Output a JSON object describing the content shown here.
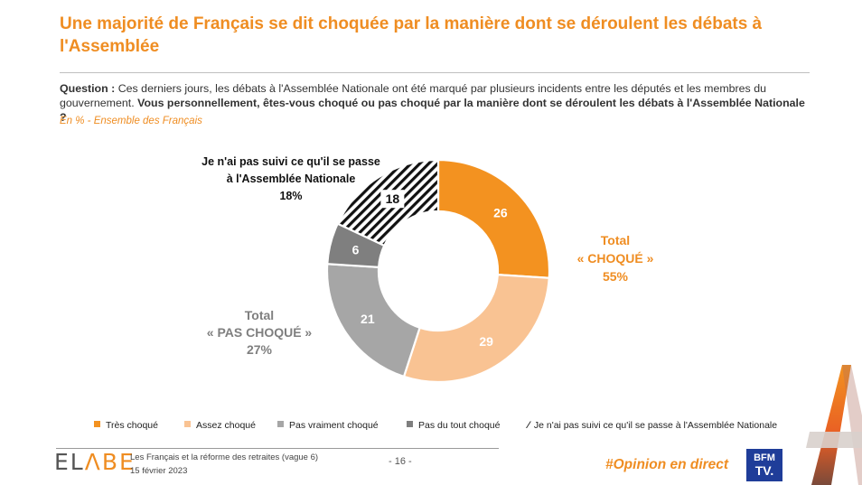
{
  "header": {
    "title": "Une majorité de Français se dit choquée par la manière dont se déroulent les débats à l'Assemblée",
    "question_prefix": "Question :",
    "question_text": " Ces derniers jours, les débats à l'Assemblée Nationale ont été marqué par plusieurs incidents entre les députés et les membres du gouvernement. ",
    "question_bold": "Vous personnellement, êtes-vous choqué ou pas choqué par la manière dont se déroulent les débats à l'Assemblée Nationale ?",
    "base": "En % - Ensemble des Français"
  },
  "chart_data": {
    "type": "pie",
    "title": "Une majorité de Français se dit choquée par la manière dont se déroulent les débats à l'Assemblée",
    "unit": "%",
    "series": [
      {
        "name": "Très choqué",
        "value": 26,
        "color": "#f39220"
      },
      {
        "name": "Assez choqué",
        "value": 29,
        "color": "#f9c393"
      },
      {
        "name": "Pas vraiment choqué",
        "value": 21,
        "color": "#a6a6a6"
      },
      {
        "name": "Pas du tout choqué",
        "value": 6,
        "color": "#7f7f7f"
      },
      {
        "name": "Je n'ai pas suivi ce qu'il se passe à l'Assemblée Nationale",
        "value": 18,
        "color": "#111111",
        "pattern": "hatch"
      }
    ],
    "annotations": {
      "total_shocked": {
        "line1": "Total",
        "line2": "« CHOQUÉ »",
        "line3": "55%"
      },
      "total_not_shocked": {
        "line1": "Total",
        "line2": "« PAS CHOQUÉ »",
        "line3": "27%"
      },
      "not_followed": {
        "line1": "Je n'ai pas suivi ce qu'il se passe",
        "line2": "à l'Assemblée Nationale",
        "line3": "18%"
      }
    }
  },
  "footer": {
    "logo_1": "EL",
    "logo_2": "ΛBE",
    "study": "Les Français et la réforme des retraites (vague 6)",
    "date": "15 février 2023",
    "page": "- 16 -",
    "hashtag": "#Opinion en direct",
    "bfm_1": "BFM",
    "bfm_2": "TV."
  }
}
